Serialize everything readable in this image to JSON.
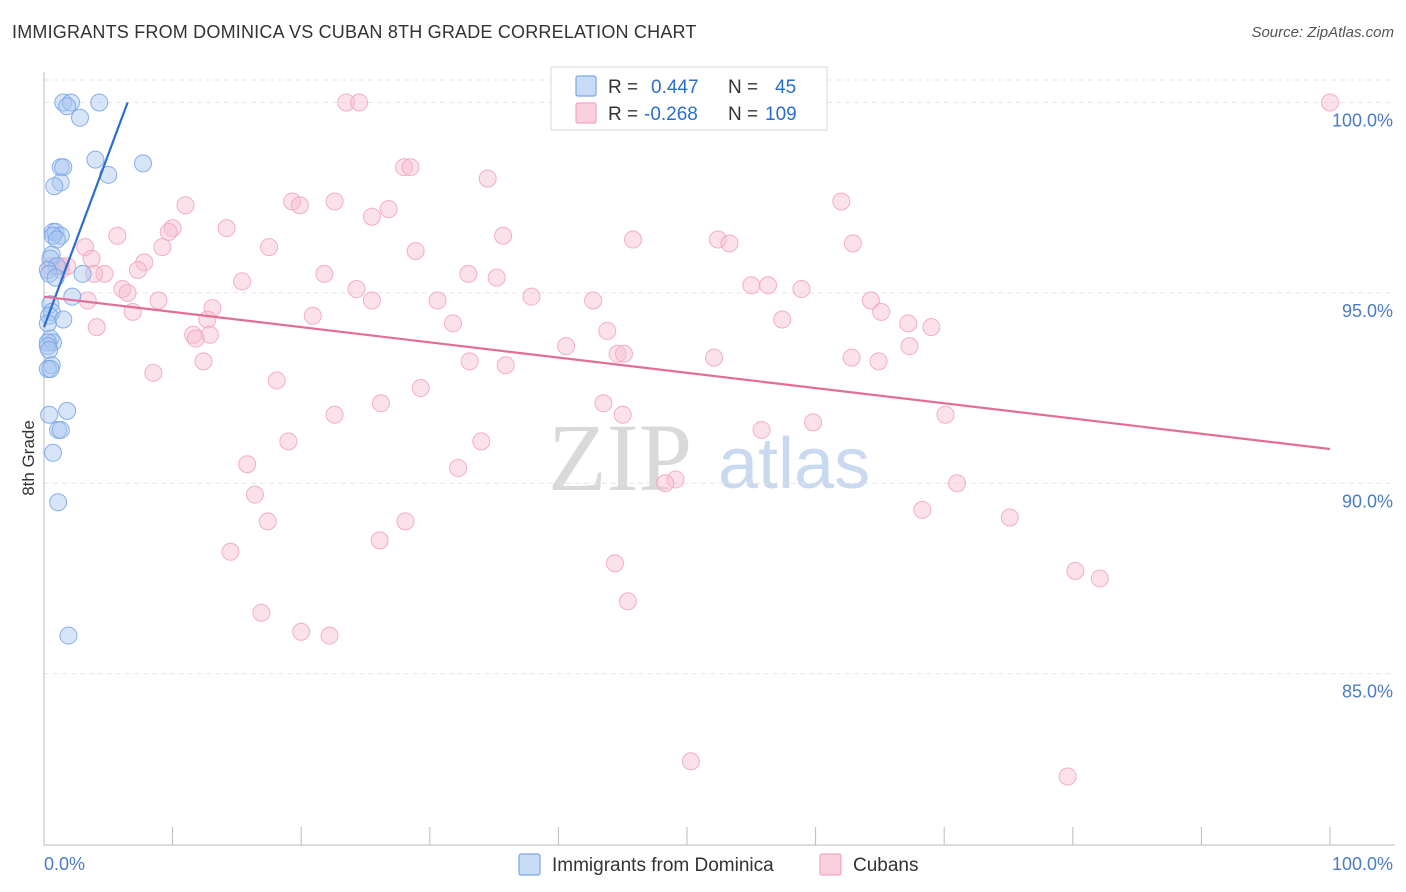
{
  "title": "IMMIGRANTS FROM DOMINICA VS CUBAN 8TH GRADE CORRELATION CHART",
  "source": "Source: ZipAtlas.com",
  "chart_data": {
    "type": "scatter",
    "title": "IMMIGRANTS FROM DOMINICA VS CUBAN 8TH GRADE CORRELATION CHART",
    "xlabel": "",
    "ylabel": "8th Grade",
    "xlim": [
      0,
      100
    ],
    "ylim": [
      80.5,
      100.8
    ],
    "x_tick_labels": [
      "0.0%",
      "100.0%"
    ],
    "y_ticks": [
      85,
      90,
      95,
      100
    ],
    "y_tick_labels": [
      "85.0%",
      "90.0%",
      "95.0%",
      "100.0%"
    ],
    "grid": true,
    "legend_position": "top-center",
    "watermark": {
      "zip": "ZIP",
      "atlas": "atlas"
    },
    "stats": [
      {
        "r_label": "R =",
        "r_value": "0.447",
        "n_label": "N =",
        "n_value": "45"
      },
      {
        "r_label": "R =",
        "r_value": "-0.268",
        "n_label": "N =",
        "n_value": "109"
      }
    ],
    "series": [
      {
        "name": "Immigrants from Dominica",
        "color": "#7aa7e8",
        "line_color": "#2a6ecf",
        "trend": {
          "x": [
            0.0,
            6.5
          ],
          "y": [
            94.1,
            100.0
          ]
        },
        "points": [
          [
            1.5,
            100.0
          ],
          [
            2.1,
            100.0
          ],
          [
            1.8,
            99.9
          ],
          [
            4.3,
            100.0
          ],
          [
            2.8,
            99.6
          ],
          [
            4.0,
            98.5
          ],
          [
            7.7,
            98.4
          ],
          [
            1.3,
            98.3
          ],
          [
            1.5,
            98.3
          ],
          [
            5.0,
            98.1
          ],
          [
            1.3,
            97.9
          ],
          [
            0.8,
            97.8
          ],
          [
            0.7,
            96.6
          ],
          [
            0.9,
            96.6
          ],
          [
            1.3,
            96.5
          ],
          [
            0.7,
            96.5
          ],
          [
            1.0,
            96.4
          ],
          [
            0.6,
            96.0
          ],
          [
            0.5,
            95.9
          ],
          [
            1.0,
            95.7
          ],
          [
            0.3,
            95.6
          ],
          [
            3.0,
            95.5
          ],
          [
            0.4,
            95.5
          ],
          [
            0.9,
            95.4
          ],
          [
            2.2,
            94.9
          ],
          [
            0.5,
            94.7
          ],
          [
            0.6,
            94.5
          ],
          [
            0.4,
            94.4
          ],
          [
            1.5,
            94.3
          ],
          [
            0.3,
            94.2
          ],
          [
            0.5,
            93.8
          ],
          [
            0.7,
            93.7
          ],
          [
            0.3,
            93.7
          ],
          [
            0.3,
            93.6
          ],
          [
            0.4,
            93.5
          ],
          [
            0.6,
            93.1
          ],
          [
            0.3,
            93.0
          ],
          [
            0.5,
            93.0
          ],
          [
            1.8,
            91.9
          ],
          [
            0.4,
            91.8
          ],
          [
            1.1,
            91.4
          ],
          [
            1.3,
            91.4
          ],
          [
            0.7,
            90.8
          ],
          [
            1.1,
            89.5
          ],
          [
            1.9,
            86.0
          ]
        ]
      },
      {
        "name": "Cubans",
        "color": "#f4a6c2",
        "line_color": "#e26d97",
        "trend": {
          "x": [
            0.0,
            100.0
          ],
          "y": [
            94.9,
            90.9
          ]
        },
        "points": [
          [
            23.5,
            100.0
          ],
          [
            24.5,
            100.0
          ],
          [
            100.0,
            100.0
          ],
          [
            28.0,
            98.3
          ],
          [
            28.5,
            98.3
          ],
          [
            34.5,
            98.0
          ],
          [
            22.6,
            97.4
          ],
          [
            19.3,
            97.4
          ],
          [
            19.9,
            97.3
          ],
          [
            26.8,
            97.2
          ],
          [
            11.0,
            97.3
          ],
          [
            25.5,
            97.0
          ],
          [
            62.0,
            97.4
          ],
          [
            10.0,
            96.7
          ],
          [
            9.7,
            96.6
          ],
          [
            14.2,
            96.7
          ],
          [
            5.7,
            96.5
          ],
          [
            28.9,
            96.1
          ],
          [
            35.7,
            96.5
          ],
          [
            45.8,
            96.4
          ],
          [
            52.4,
            96.4
          ],
          [
            53.3,
            96.3
          ],
          [
            62.9,
            96.3
          ],
          [
            3.2,
            96.2
          ],
          [
            9.2,
            96.2
          ],
          [
            17.5,
            96.2
          ],
          [
            0.5,
            95.7
          ],
          [
            1.3,
            95.7
          ],
          [
            1.8,
            95.7
          ],
          [
            1.3,
            95.6
          ],
          [
            3.7,
            95.9
          ],
          [
            7.8,
            95.8
          ],
          [
            7.3,
            95.6
          ],
          [
            4.7,
            95.5
          ],
          [
            3.9,
            95.5
          ],
          [
            15.4,
            95.3
          ],
          [
            21.8,
            95.5
          ],
          [
            33.0,
            95.5
          ],
          [
            35.2,
            95.4
          ],
          [
            24.3,
            95.1
          ],
          [
            6.1,
            95.1
          ],
          [
            6.5,
            95.0
          ],
          [
            8.9,
            94.8
          ],
          [
            3.4,
            94.8
          ],
          [
            25.5,
            94.8
          ],
          [
            30.6,
            94.8
          ],
          [
            37.9,
            94.9
          ],
          [
            42.7,
            94.8
          ],
          [
            55.0,
            95.2
          ],
          [
            56.3,
            95.2
          ],
          [
            58.9,
            95.1
          ],
          [
            64.3,
            94.8
          ],
          [
            65.1,
            94.5
          ],
          [
            6.9,
            94.5
          ],
          [
            13.1,
            94.6
          ],
          [
            20.9,
            94.4
          ],
          [
            4.1,
            94.1
          ],
          [
            12.7,
            94.3
          ],
          [
            31.8,
            94.2
          ],
          [
            43.8,
            94.0
          ],
          [
            57.4,
            94.3
          ],
          [
            67.2,
            94.2
          ],
          [
            69.0,
            94.1
          ],
          [
            11.6,
            93.9
          ],
          [
            11.8,
            93.8
          ],
          [
            12.9,
            93.9
          ],
          [
            40.6,
            93.6
          ],
          [
            44.6,
            93.4
          ],
          [
            45.1,
            93.4
          ],
          [
            12.4,
            93.2
          ],
          [
            33.1,
            93.2
          ],
          [
            35.9,
            93.1
          ],
          [
            52.1,
            93.3
          ],
          [
            62.8,
            93.3
          ],
          [
            64.9,
            93.2
          ],
          [
            67.3,
            93.6
          ],
          [
            8.5,
            92.9
          ],
          [
            18.1,
            92.7
          ],
          [
            29.3,
            92.5
          ],
          [
            26.2,
            92.1
          ],
          [
            43.5,
            92.1
          ],
          [
            22.6,
            91.8
          ],
          [
            45.0,
            91.8
          ],
          [
            70.1,
            91.8
          ],
          [
            59.8,
            91.6
          ],
          [
            55.8,
            91.4
          ],
          [
            19.0,
            91.1
          ],
          [
            34.0,
            91.1
          ],
          [
            15.8,
            90.5
          ],
          [
            32.2,
            90.4
          ],
          [
            49.1,
            90.1
          ],
          [
            48.3,
            90.0
          ],
          [
            71.0,
            90.0
          ],
          [
            16.4,
            89.7
          ],
          [
            68.3,
            89.3
          ],
          [
            75.1,
            89.1
          ],
          [
            17.4,
            89.0
          ],
          [
            28.1,
            89.0
          ],
          [
            26.1,
            88.5
          ],
          [
            14.5,
            88.2
          ],
          [
            44.4,
            87.9
          ],
          [
            80.2,
            87.7
          ],
          [
            82.1,
            87.5
          ],
          [
            45.4,
            86.9
          ],
          [
            16.9,
            86.6
          ],
          [
            20.0,
            86.1
          ],
          [
            22.2,
            86.0
          ],
          [
            50.3,
            82.7
          ],
          [
            79.6,
            82.3
          ]
        ]
      }
    ]
  }
}
